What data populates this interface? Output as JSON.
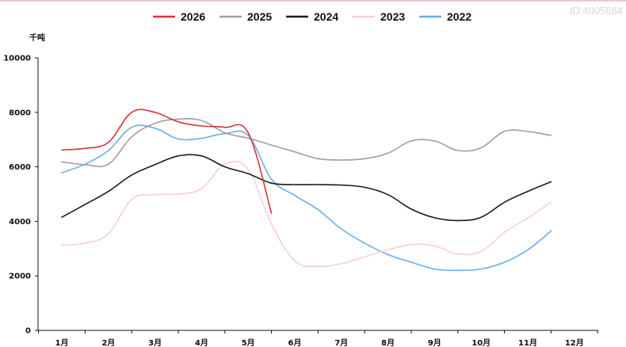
{
  "watermark": "ID:4005684",
  "chart_data": {
    "type": "line",
    "title": "",
    "ylabel": "千吨",
    "xlabel": "",
    "ylim": [
      0,
      10000
    ],
    "yticks": [
      0,
      2000,
      4000,
      6000,
      8000,
      10000
    ],
    "categories": [
      "1月",
      "2月",
      "3月",
      "4月",
      "5月",
      "6月",
      "7月",
      "8月",
      "9月",
      "10月",
      "11月",
      "12月"
    ],
    "legend_position": "top-center",
    "grid": false,
    "series": [
      {
        "name": "2026",
        "color": "#d8323a",
        "points": [
          [
            1,
            6620
          ],
          [
            1.5,
            6680
          ],
          [
            2,
            6900
          ],
          [
            2.5,
            8000
          ],
          [
            3,
            8000
          ],
          [
            3.5,
            7650
          ],
          [
            4,
            7500
          ],
          [
            4.5,
            7450
          ],
          [
            5,
            7250
          ],
          [
            5.5,
            4300
          ]
        ]
      },
      {
        "name": "2025",
        "color": "#9e9e9e",
        "points": [
          [
            1,
            6180
          ],
          [
            1.5,
            6080
          ],
          [
            2,
            6100
          ],
          [
            2.5,
            7100
          ],
          [
            3,
            7600
          ],
          [
            3.5,
            7750
          ],
          [
            4,
            7700
          ],
          [
            4.5,
            7250
          ],
          [
            5,
            7050
          ],
          [
            5.5,
            6800
          ],
          [
            6,
            6550
          ],
          [
            6.5,
            6300
          ],
          [
            7,
            6250
          ],
          [
            7.5,
            6300
          ],
          [
            8,
            6500
          ],
          [
            8.5,
            6950
          ],
          [
            9,
            6950
          ],
          [
            9.5,
            6600
          ],
          [
            10,
            6700
          ],
          [
            10.5,
            7300
          ],
          [
            11,
            7300
          ],
          [
            11.5,
            7150
          ]
        ]
      },
      {
        "name": "2024",
        "color": "#1c1c1c",
        "points": [
          [
            1,
            4150
          ],
          [
            1.5,
            4620
          ],
          [
            2,
            5100
          ],
          [
            2.5,
            5700
          ],
          [
            3,
            6080
          ],
          [
            3.5,
            6400
          ],
          [
            4,
            6400
          ],
          [
            4.5,
            6000
          ],
          [
            5,
            5750
          ],
          [
            5.5,
            5400
          ],
          [
            6,
            5350
          ],
          [
            6.5,
            5350
          ],
          [
            7,
            5330
          ],
          [
            7.5,
            5250
          ],
          [
            8,
            4980
          ],
          [
            8.5,
            4450
          ],
          [
            9,
            4130
          ],
          [
            9.5,
            4030
          ],
          [
            10,
            4150
          ],
          [
            10.5,
            4700
          ],
          [
            11,
            5100
          ],
          [
            11.5,
            5450
          ]
        ]
      },
      {
        "name": "2023",
        "color": "#f8cfd3",
        "points": [
          [
            1,
            3130
          ],
          [
            1.5,
            3200
          ],
          [
            2,
            3550
          ],
          [
            2.5,
            4800
          ],
          [
            3,
            4980
          ],
          [
            3.5,
            5000
          ],
          [
            4,
            5200
          ],
          [
            4.5,
            6100
          ],
          [
            5,
            5900
          ],
          [
            5.5,
            3900
          ],
          [
            6,
            2550
          ],
          [
            6.5,
            2350
          ],
          [
            7,
            2450
          ],
          [
            7.5,
            2700
          ],
          [
            8,
            2950
          ],
          [
            8.5,
            3150
          ],
          [
            9,
            3100
          ],
          [
            9.5,
            2800
          ],
          [
            10,
            2900
          ],
          [
            10.5,
            3600
          ],
          [
            11,
            4120
          ],
          [
            11.5,
            4700
          ]
        ]
      },
      {
        "name": "2022",
        "color": "#6aaee8",
        "points": [
          [
            1,
            5780
          ],
          [
            1.5,
            6100
          ],
          [
            2,
            6600
          ],
          [
            2.5,
            7450
          ],
          [
            3,
            7420
          ],
          [
            3.5,
            7020
          ],
          [
            4,
            7050
          ],
          [
            4.5,
            7220
          ],
          [
            5,
            7150
          ],
          [
            5.5,
            5550
          ],
          [
            6,
            4950
          ],
          [
            6.5,
            4430
          ],
          [
            7,
            3720
          ],
          [
            7.5,
            3200
          ],
          [
            8,
            2780
          ],
          [
            8.5,
            2500
          ],
          [
            9,
            2250
          ],
          [
            9.5,
            2200
          ],
          [
            10,
            2250
          ],
          [
            10.5,
            2500
          ],
          [
            11,
            2950
          ],
          [
            11.5,
            3650
          ]
        ]
      }
    ]
  }
}
